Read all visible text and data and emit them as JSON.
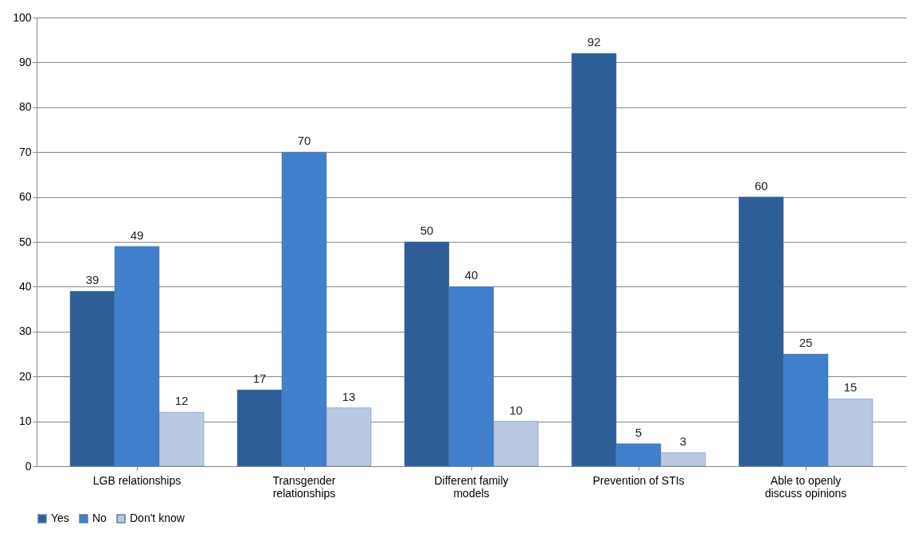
{
  "chart_data": {
    "type": "bar",
    "categories": [
      "LGB relationships",
      "Transgender relationships",
      "Different family models",
      "Prevention of STIs",
      "Able to openly discuss opinions"
    ],
    "series": [
      {
        "name": "Yes",
        "color": "#2e5e97",
        "values": [
          39,
          17,
          50,
          92,
          60
        ]
      },
      {
        "name": "No",
        "color": "#3f7fcb",
        "values": [
          49,
          70,
          40,
          5,
          25
        ]
      },
      {
        "name": "Don't know",
        "color": "#b9c9e2",
        "values": [
          12,
          13,
          10,
          3,
          15
        ]
      }
    ],
    "ylim": [
      0,
      100
    ],
    "yticks": [
      0,
      10,
      20,
      30,
      40,
      50,
      60,
      70,
      80,
      90,
      100
    ],
    "grid": "y",
    "legend": "bottom",
    "data_labels": true
  }
}
